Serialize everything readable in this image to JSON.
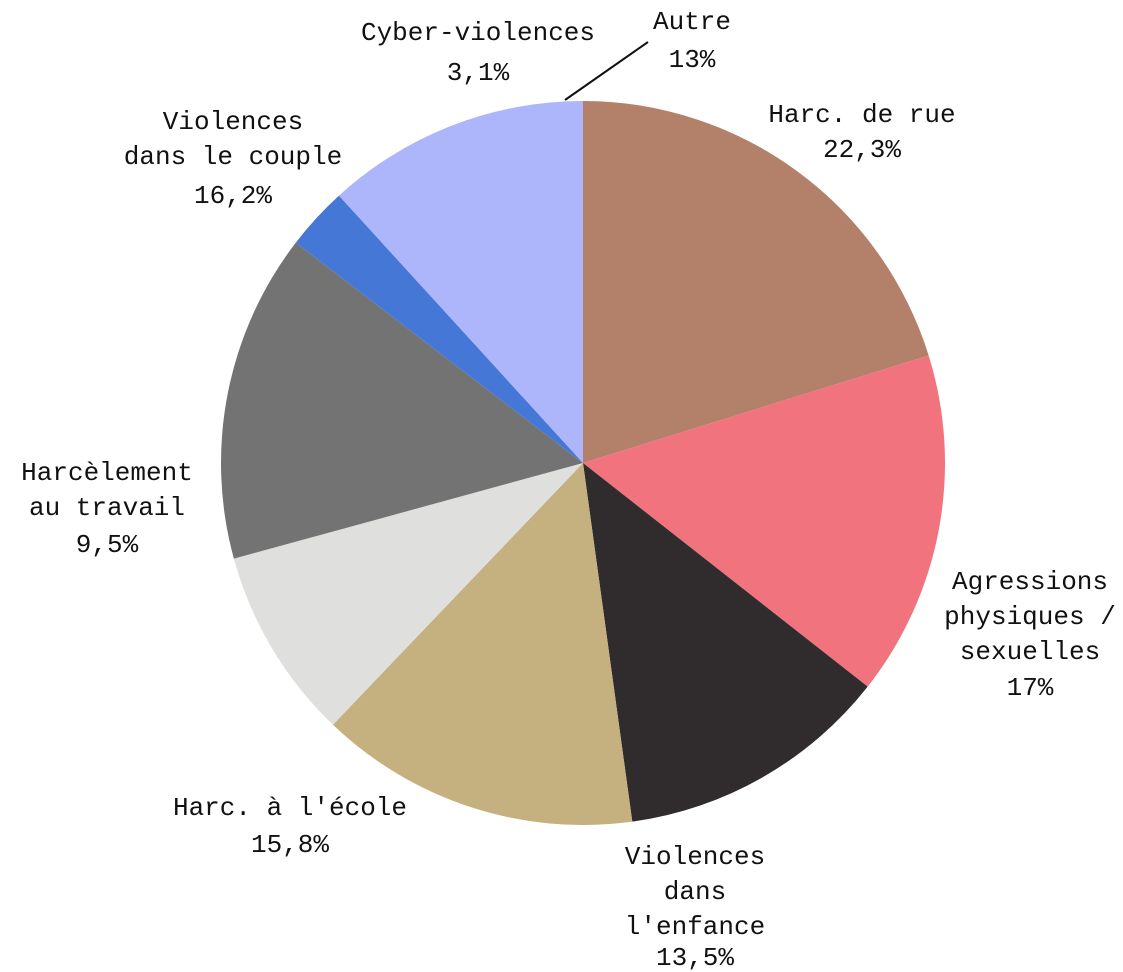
{
  "chart_data": {
    "type": "pie",
    "categories": [
      "Harc. de rue",
      "Agressions\nphysiques /\nsexuelles",
      "Violences\ndans\nl'enfance",
      "Harc. à l'école",
      "Harcèlement\nau travail",
      "Violences\ndans le couple",
      "Cyber-violences",
      "Autre"
    ],
    "values": [
      22.3,
      17,
      13.5,
      15.8,
      9.5,
      16.2,
      3.1,
      13
    ],
    "value_labels": [
      "22,3%",
      "17%",
      "13,5%",
      "15,8%",
      "9,5%",
      "16,2%",
      "3,1%",
      "13%"
    ],
    "colors": [
      "#b3806a",
      "#f0737d",
      "#302b2c",
      "#c5b07f",
      "#dfdfdd",
      "#737373",
      "#4477d6",
      "#adb5fb"
    ]
  }
}
